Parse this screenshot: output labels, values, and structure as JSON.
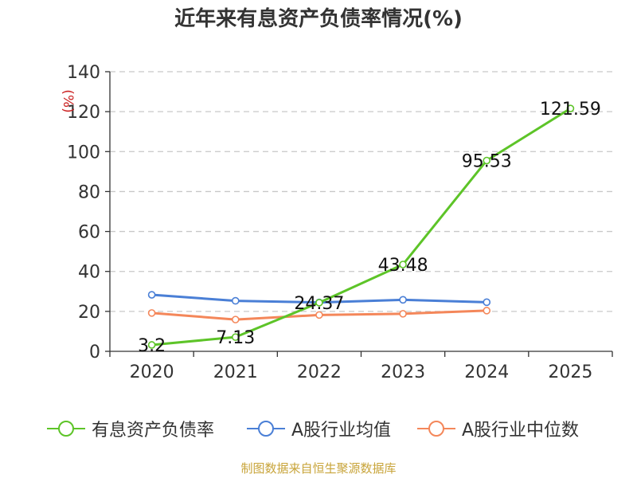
{
  "chart_data": {
    "type": "line",
    "title": "近年来有息资产负债率情况(%)",
    "ylabel": "(%)",
    "xlabel": "",
    "categories": [
      "2020",
      "2021",
      "2022",
      "2023",
      "2024",
      "2025"
    ],
    "ylim": [
      0,
      140
    ],
    "yticks": [
      0,
      20,
      40,
      60,
      80,
      100,
      120,
      140
    ],
    "grid": "horizontal dashed",
    "legend_position": "bottom",
    "series": [
      {
        "name": "有息资产负债率",
        "color": "#5dc428",
        "values": [
          3.2,
          7.13,
          24.37,
          43.48,
          95.53,
          121.59
        ],
        "labels": [
          "3.2",
          "7.13",
          "24.37",
          "43.48",
          "95.53",
          "121.59"
        ]
      },
      {
        "name": "A股行业均值",
        "color": "#4a7fd6",
        "values": [
          28.3,
          25.3,
          24.5,
          25.8,
          24.6,
          null
        ]
      },
      {
        "name": "A股行业中位数",
        "color": "#f4875a",
        "values": [
          19.2,
          15.9,
          18.2,
          18.8,
          20.4,
          null
        ]
      }
    ]
  },
  "footer": {
    "source": "制图数据来自恒生聚源数据库"
  }
}
